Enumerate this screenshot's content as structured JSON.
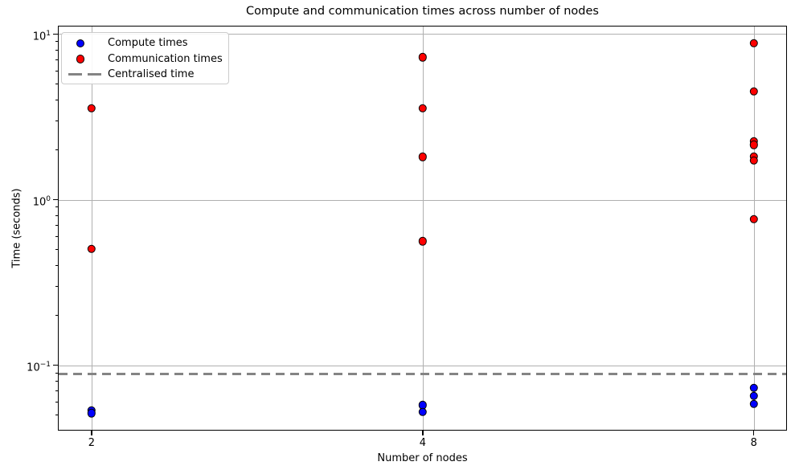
{
  "figure": {
    "title": "Compute and communication times across number of nodes"
  },
  "chart_data": {
    "type": "scatter",
    "title": "Compute and communication times across number of nodes",
    "xlabel": "Number of nodes",
    "ylabel": "Time (seconds)",
    "x_scale": "log2",
    "y_scale": "log10",
    "xlim": [
      1.867,
      8.56
    ],
    "ylim": [
      0.0408,
      11.1
    ],
    "grid": true,
    "legend_position": "upper-left",
    "x_ticks": [
      {
        "label": "2",
        "value": 2
      },
      {
        "label": "4",
        "value": 4
      },
      {
        "label": "8",
        "value": 8
      }
    ],
    "y_ticks": [
      {
        "label_base": "10",
        "label_exp": "1",
        "value": 10
      },
      {
        "label_base": "10",
        "label_exp": "0",
        "value": 1
      },
      {
        "label_base": "10",
        "label_exp": "−1",
        "value": 0.1
      }
    ],
    "series": [
      {
        "name": "Compute times",
        "color": "#0000ff",
        "edge_color": "#000000",
        "marker": "circle",
        "points": [
          [
            2,
            0.0535
          ],
          [
            2,
            0.0513
          ],
          [
            4,
            0.0576
          ],
          [
            4,
            0.0524
          ],
          [
            8,
            0.0733
          ],
          [
            8,
            0.0655
          ],
          [
            8,
            0.0586
          ]
        ]
      },
      {
        "name": "Communication times",
        "color": "#ff0000",
        "edge_color": "#000000",
        "marker": "circle",
        "points": [
          [
            2,
            3.56
          ],
          [
            2,
            0.505
          ],
          [
            4,
            7.23
          ],
          [
            4,
            3.56
          ],
          [
            4,
            1.81
          ],
          [
            4,
            0.56
          ],
          [
            8,
            8.77
          ],
          [
            8,
            4.5
          ],
          [
            8,
            2.26
          ],
          [
            8,
            2.14
          ],
          [
            8,
            1.82
          ],
          [
            8,
            1.72
          ],
          [
            8,
            0.76
          ]
        ]
      }
    ],
    "reference_line": {
      "name": "Centralised time",
      "value": 0.089,
      "color": "#848484",
      "style": "dashed"
    }
  },
  "legend": {
    "items": [
      {
        "label": "Compute times",
        "marker": "dot",
        "color": "#0000ff"
      },
      {
        "label": "Communication times",
        "marker": "dot",
        "color": "#ff0000"
      },
      {
        "label": "Centralised time",
        "marker": "dashed-line",
        "color": "#848484"
      }
    ]
  },
  "colors": {
    "grid": "#b0b0b0",
    "spine": "#000000",
    "background": "#ffffff"
  }
}
